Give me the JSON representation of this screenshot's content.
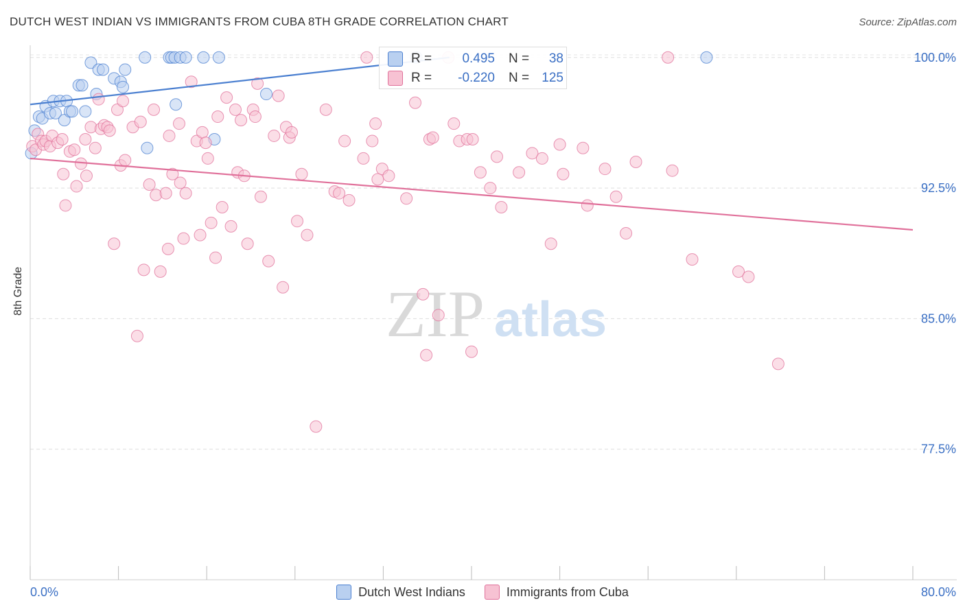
{
  "title": "DUTCH WEST INDIAN VS IMMIGRANTS FROM CUBA 8TH GRADE CORRELATION CHART",
  "source": "Source: ZipAtlas.com",
  "watermark": {
    "zip": "ZIP",
    "atlas": "atlas"
  },
  "colors": {
    "blue": "#4a7fd0",
    "blue_fill": "#b9d0f0",
    "pink": "#e0709a",
    "pink_fill": "#f7c2d3",
    "axis_text": "#3a6fc4"
  },
  "stats": [
    {
      "r_label": "R =",
      "r_value": "0.495",
      "n_label": "N =",
      "n_value": "38"
    },
    {
      "r_label": "R =",
      "r_value": "-0.220",
      "n_label": "N =",
      "n_value": "125"
    }
  ],
  "legend": [
    "Dutch West Indians",
    "Immigrants from Cuba"
  ],
  "chart_data": {
    "type": "scatter",
    "title": "DUTCH WEST INDIAN VS IMMIGRANTS FROM CUBA 8TH GRADE CORRELATION CHART",
    "xlabel": "",
    "ylabel": "8th Grade",
    "xlim": [
      0,
      80
    ],
    "ylim": [
      70.0,
      100.7
    ],
    "x_tick_labels": [
      "0.0%",
      "80.0%"
    ],
    "y_ticks": [
      100.0,
      92.5,
      85.0,
      77.5
    ],
    "y_tick_labels": [
      "100.0%",
      "92.5%",
      "85.0%",
      "77.5%"
    ],
    "grid": true,
    "series": [
      {
        "name": "Dutch West Indians",
        "color": "#4a7fd0",
        "trend": {
          "x": [
            0,
            38
          ],
          "y": [
            97.3,
            100.0
          ]
        },
        "points": [
          [
            0.1,
            94.5
          ],
          [
            0.4,
            95.8
          ],
          [
            0.8,
            96.6
          ],
          [
            1.1,
            96.5
          ],
          [
            1.4,
            97.2
          ],
          [
            1.8,
            96.8
          ],
          [
            2.1,
            97.5
          ],
          [
            2.3,
            96.8
          ],
          [
            2.7,
            97.5
          ],
          [
            3.1,
            96.4
          ],
          [
            3.3,
            97.5
          ],
          [
            3.6,
            96.9
          ],
          [
            3.8,
            96.9
          ],
          [
            4.4,
            98.4
          ],
          [
            4.7,
            98.4
          ],
          [
            5.0,
            96.9
          ],
          [
            5.5,
            99.7
          ],
          [
            6.0,
            97.9
          ],
          [
            6.2,
            99.3
          ],
          [
            6.6,
            99.3
          ],
          [
            7.6,
            98.8
          ],
          [
            8.2,
            98.6
          ],
          [
            8.4,
            98.3
          ],
          [
            8.6,
            99.3
          ],
          [
            10.4,
            100.0
          ],
          [
            10.6,
            94.8
          ],
          [
            12.6,
            100.0
          ],
          [
            12.8,
            100.0
          ],
          [
            13.1,
            100.0
          ],
          [
            13.2,
            97.3
          ],
          [
            13.6,
            100.0
          ],
          [
            14.1,
            100.0
          ],
          [
            15.7,
            100.0
          ],
          [
            16.7,
            95.3
          ],
          [
            17.1,
            100.0
          ],
          [
            21.4,
            97.9
          ],
          [
            35.0,
            100.0
          ],
          [
            61.3,
            100.0
          ]
        ]
      },
      {
        "name": "Immigrants from Cuba",
        "color": "#e0709a",
        "trend": {
          "x": [
            0,
            80
          ],
          "y": [
            94.2,
            90.1
          ]
        },
        "points": [
          [
            0.2,
            94.9
          ],
          [
            0.5,
            94.7
          ],
          [
            0.7,
            95.6
          ],
          [
            1.0,
            95.2
          ],
          [
            1.2,
            95.0
          ],
          [
            1.4,
            95.2
          ],
          [
            1.8,
            94.9
          ],
          [
            2.0,
            95.5
          ],
          [
            2.5,
            95.1
          ],
          [
            2.9,
            95.3
          ],
          [
            3.0,
            93.3
          ],
          [
            3.2,
            91.5
          ],
          [
            3.6,
            94.6
          ],
          [
            4.0,
            94.7
          ],
          [
            4.2,
            92.6
          ],
          [
            4.6,
            93.9
          ],
          [
            5.0,
            95.3
          ],
          [
            5.1,
            93.2
          ],
          [
            5.5,
            96.0
          ],
          [
            5.9,
            94.8
          ],
          [
            6.2,
            97.6
          ],
          [
            6.4,
            95.9
          ],
          [
            6.7,
            96.1
          ],
          [
            7.0,
            96.0
          ],
          [
            7.2,
            95.8
          ],
          [
            7.6,
            89.3
          ],
          [
            7.9,
            97.0
          ],
          [
            8.2,
            93.8
          ],
          [
            8.4,
            97.5
          ],
          [
            8.6,
            94.1
          ],
          [
            9.3,
            96.0
          ],
          [
            9.7,
            84.0
          ],
          [
            10.0,
            96.3
          ],
          [
            10.3,
            87.8
          ],
          [
            10.8,
            92.7
          ],
          [
            11.2,
            97.0
          ],
          [
            11.4,
            92.1
          ],
          [
            11.8,
            87.7
          ],
          [
            12.3,
            92.2
          ],
          [
            12.5,
            89.0
          ],
          [
            12.6,
            95.5
          ],
          [
            12.9,
            93.3
          ],
          [
            13.5,
            96.2
          ],
          [
            13.6,
            92.8
          ],
          [
            13.9,
            89.6
          ],
          [
            14.1,
            92.2
          ],
          [
            14.6,
            98.6
          ],
          [
            15.1,
            95.2
          ],
          [
            15.4,
            89.8
          ],
          [
            15.6,
            95.7
          ],
          [
            15.9,
            95.1
          ],
          [
            16.1,
            94.2
          ],
          [
            16.4,
            90.5
          ],
          [
            16.8,
            88.5
          ],
          [
            17.0,
            96.6
          ],
          [
            17.4,
            91.4
          ],
          [
            17.8,
            97.7
          ],
          [
            18.2,
            90.3
          ],
          [
            18.6,
            97.0
          ],
          [
            18.8,
            93.4
          ],
          [
            19.1,
            96.4
          ],
          [
            19.4,
            93.2
          ],
          [
            19.7,
            89.3
          ],
          [
            20.2,
            97.0
          ],
          [
            20.4,
            96.6
          ],
          [
            20.6,
            98.5
          ],
          [
            20.9,
            92.0
          ],
          [
            21.6,
            88.3
          ],
          [
            22.1,
            95.5
          ],
          [
            22.5,
            97.8
          ],
          [
            22.9,
            86.8
          ],
          [
            23.2,
            96.0
          ],
          [
            23.5,
            95.4
          ],
          [
            23.7,
            95.7
          ],
          [
            24.2,
            90.6
          ],
          [
            24.6,
            93.3
          ],
          [
            25.1,
            89.8
          ],
          [
            25.9,
            78.8
          ],
          [
            26.8,
            97.0
          ],
          [
            27.6,
            92.3
          ],
          [
            28.0,
            92.2
          ],
          [
            28.5,
            95.2
          ],
          [
            28.9,
            91.8
          ],
          [
            30.2,
            94.2
          ],
          [
            30.5,
            100.0
          ],
          [
            31.0,
            95.2
          ],
          [
            31.3,
            96.2
          ],
          [
            31.5,
            93.0
          ],
          [
            31.9,
            93.6
          ],
          [
            32.5,
            93.2
          ],
          [
            34.1,
            91.9
          ],
          [
            34.9,
            97.4
          ],
          [
            35.6,
            86.4
          ],
          [
            35.9,
            82.9
          ],
          [
            36.2,
            95.3
          ],
          [
            36.5,
            95.4
          ],
          [
            37.0,
            85.2
          ],
          [
            37.9,
            100.0
          ],
          [
            38.4,
            96.2
          ],
          [
            38.9,
            95.2
          ],
          [
            39.6,
            95.3
          ],
          [
            40.0,
            83.1
          ],
          [
            40.1,
            95.3
          ],
          [
            40.8,
            93.4
          ],
          [
            41.7,
            92.5
          ],
          [
            42.3,
            94.3
          ],
          [
            42.7,
            91.4
          ],
          [
            44.3,
            93.4
          ],
          [
            45.5,
            94.5
          ],
          [
            46.4,
            94.2
          ],
          [
            47.2,
            89.3
          ],
          [
            48.0,
            95.0
          ],
          [
            48.3,
            93.3
          ],
          [
            50.1,
            94.8
          ],
          [
            50.5,
            91.5
          ],
          [
            52.1,
            93.6
          ],
          [
            53.1,
            92.0
          ],
          [
            54.0,
            89.9
          ],
          [
            54.9,
            94.0
          ],
          [
            57.8,
            100.0
          ],
          [
            58.2,
            93.5
          ],
          [
            60.0,
            88.4
          ],
          [
            64.2,
            87.7
          ],
          [
            65.1,
            87.4
          ],
          [
            67.8,
            82.4
          ]
        ]
      }
    ]
  }
}
